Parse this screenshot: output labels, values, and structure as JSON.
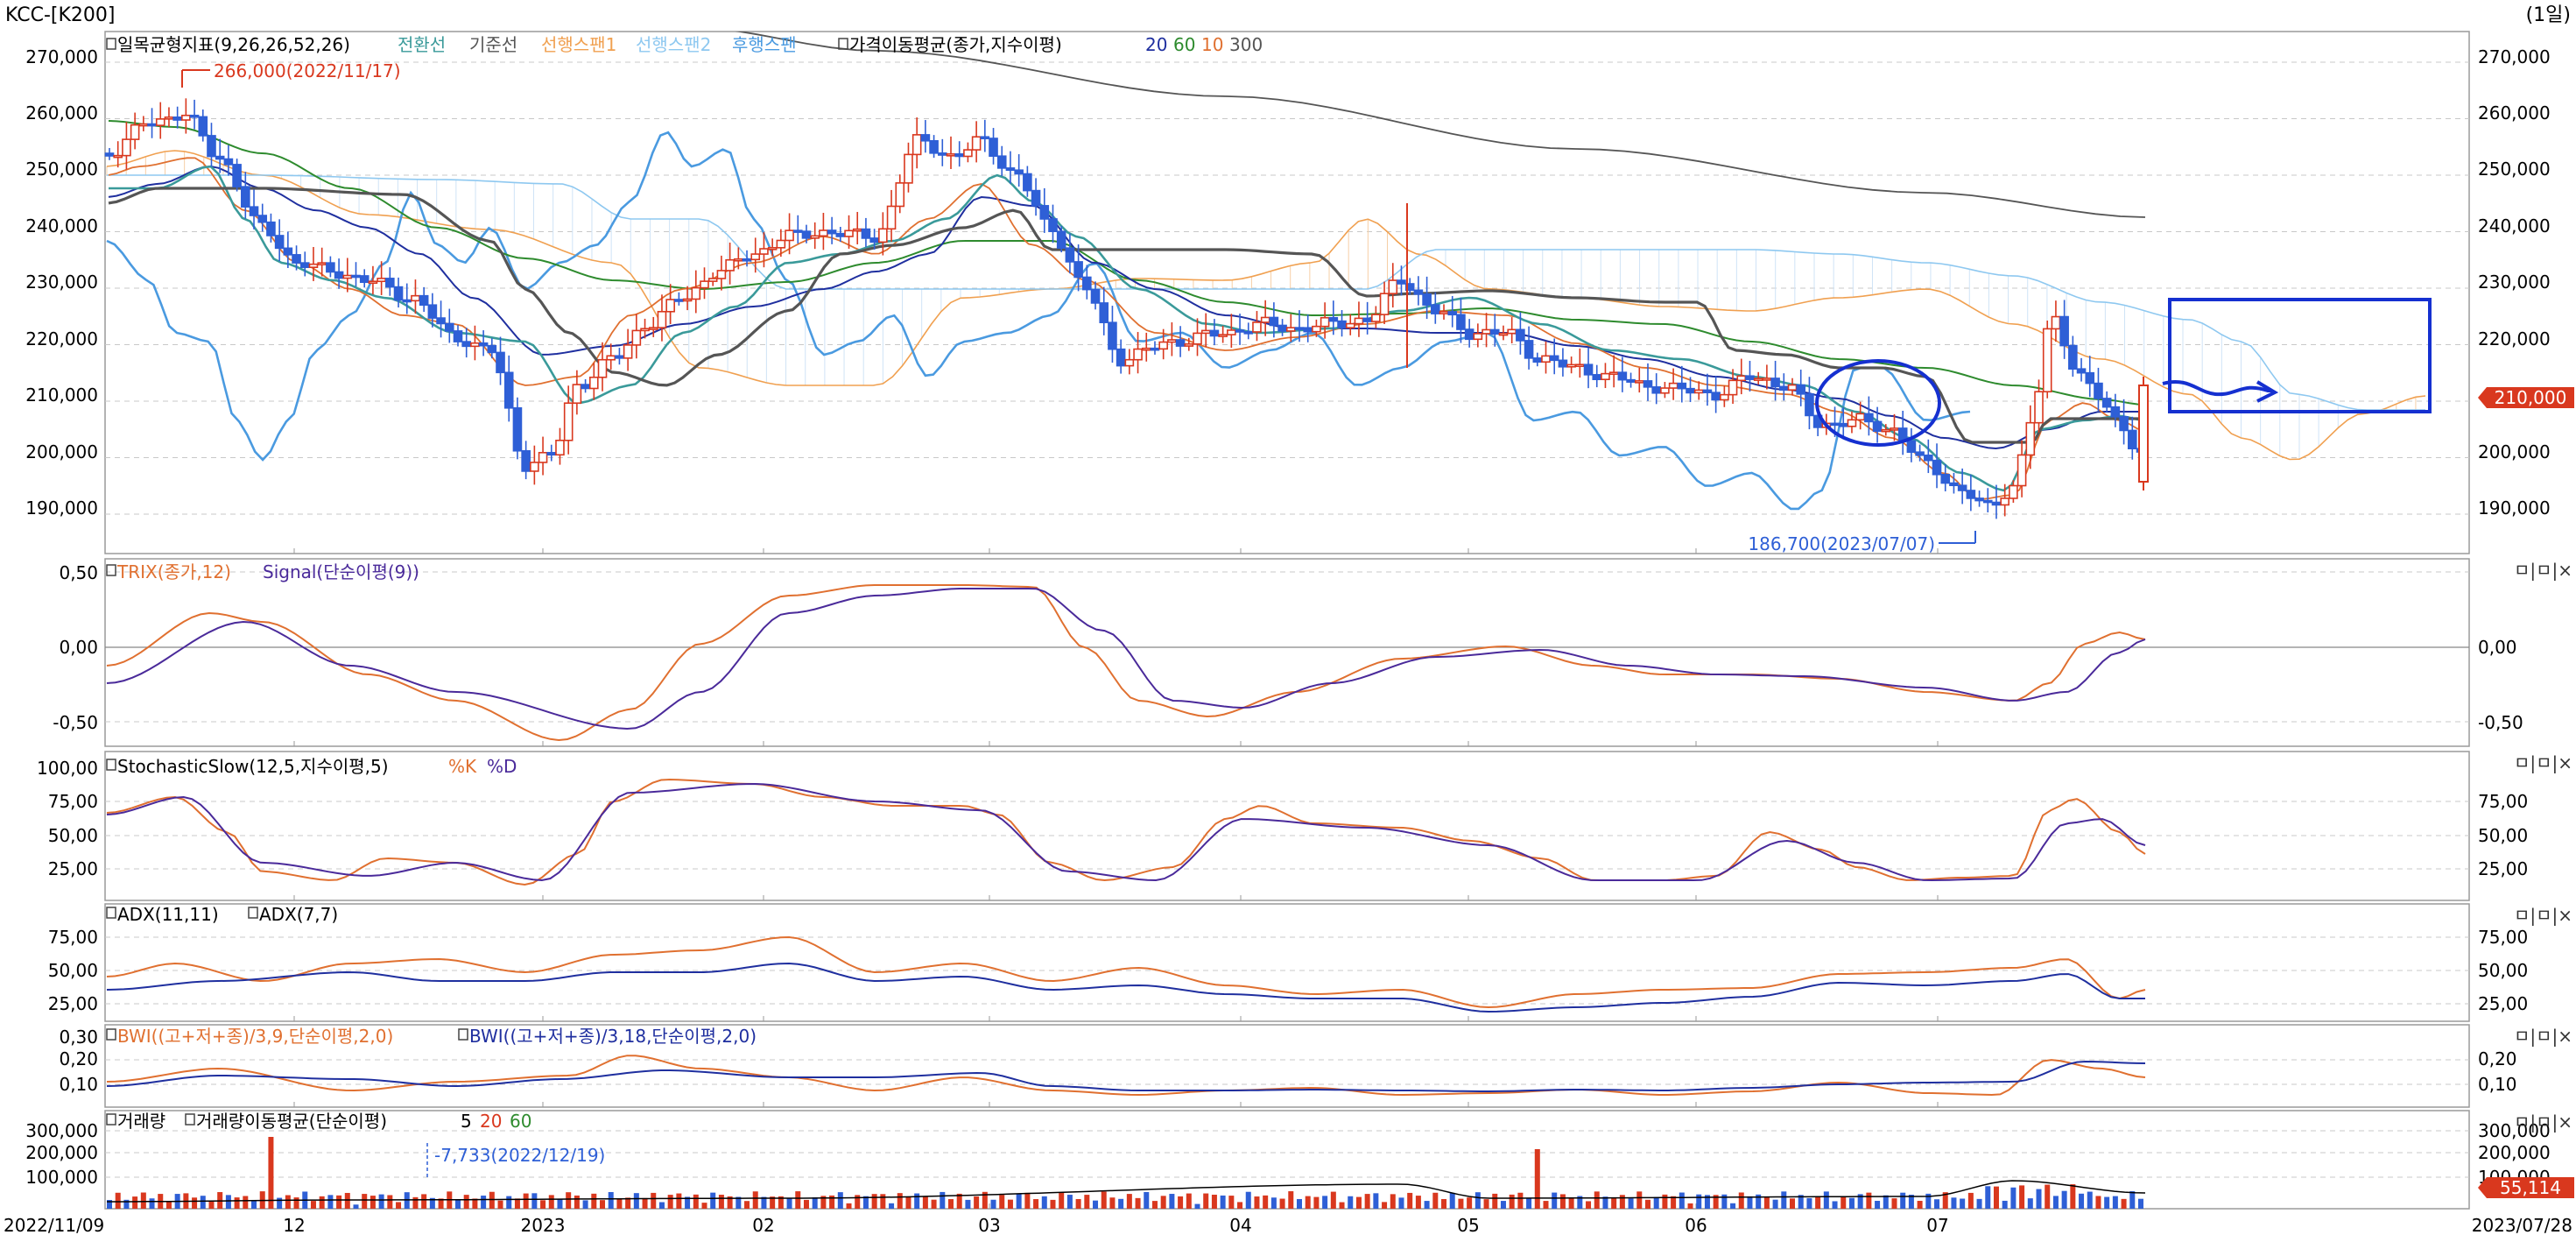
{
  "header": {
    "title": "KCC-[K200]",
    "period": "(1일)"
  },
  "main_chart": {
    "price_axis": [
      "270,000",
      "260,000",
      "250,000",
      "240,000",
      "230,000",
      "220,000",
      "210,000",
      "200,000",
      "190,000"
    ],
    "legend": {
      "ichimoku": "일목균형지표(9,26,26,52,26)",
      "tenkan": "전환선",
      "kijun": "기준선",
      "span1": "선행스팬1",
      "span2": "선행스팬2",
      "chikou": "후행스팬",
      "ma_title": "가격이동평균(종가,지수이평)",
      "ma20": "20",
      "ma60": "60",
      "ma10": "10",
      "ma300": "300"
    },
    "annotations": {
      "high": "266,000(2022/11/17)",
      "low": "186,700(2023/07/07)"
    },
    "current_price": "210,000"
  },
  "trix_panel": {
    "axis": [
      "0,50",
      "0,00",
      "-0,50"
    ],
    "legend": {
      "trix": "TRIX(종가,12)",
      "signal": "Signal(단순이평(9))"
    }
  },
  "stoch_panel": {
    "axis": [
      "100,00",
      "75,00",
      "50,00",
      "25,00"
    ],
    "right_axis": [
      "75,00",
      "50,00",
      "25,00"
    ],
    "legend": {
      "title": "StochasticSlow(12,5,지수이평,5)",
      "k": "%K",
      "d": "%D"
    }
  },
  "adx_panel": {
    "axis": [
      "75,00",
      "50,00",
      "25,00"
    ],
    "legend": {
      "adx1": "ADX(11,11)",
      "adx2": "ADX(7,7)"
    }
  },
  "bwi_panel": {
    "axis": [
      "0,30",
      "0,20",
      "0,10"
    ],
    "right_axis": [
      "0,20",
      "0,10"
    ],
    "legend": {
      "bwi1": "BWI((고+저+종)/3,9,단순이평,2,0)",
      "bwi2": "BWI((고+저+종)/3,18,단순이평,2,0)"
    }
  },
  "volume_panel": {
    "axis": [
      "300,000",
      "200,000",
      "100,000"
    ],
    "right_axis": [
      "300,000",
      "200,000",
      "100,000"
    ],
    "legend": {
      "vol": "거래량",
      "vma": "거래량이동평균(단순이평)",
      "p5": "5",
      "p20": "20",
      "p60": "60"
    },
    "annotation": "-7,733(2022/12/19)",
    "current_volume": "55,114"
  },
  "x_axis": {
    "start": "2022/11/09",
    "end": "2023/07/28",
    "labels": [
      "12",
      "2023",
      "02",
      "03",
      "04",
      "05",
      "06",
      "07"
    ]
  },
  "panel_buttons": "ㅁ|ㅁ|×",
  "colors": {
    "tenkan": "#3a9a9a",
    "kijun": "#555555",
    "span1": "#f0a050",
    "span2": "#8ec8f0",
    "chikou": "#4a9ae0",
    "ma20": "#1f2f9f",
    "ma60": "#2e8b2e",
    "ma10": "#e07030",
    "ma300": "#555555",
    "up": "#d9381e",
    "down": "#2e5fd6"
  }
}
